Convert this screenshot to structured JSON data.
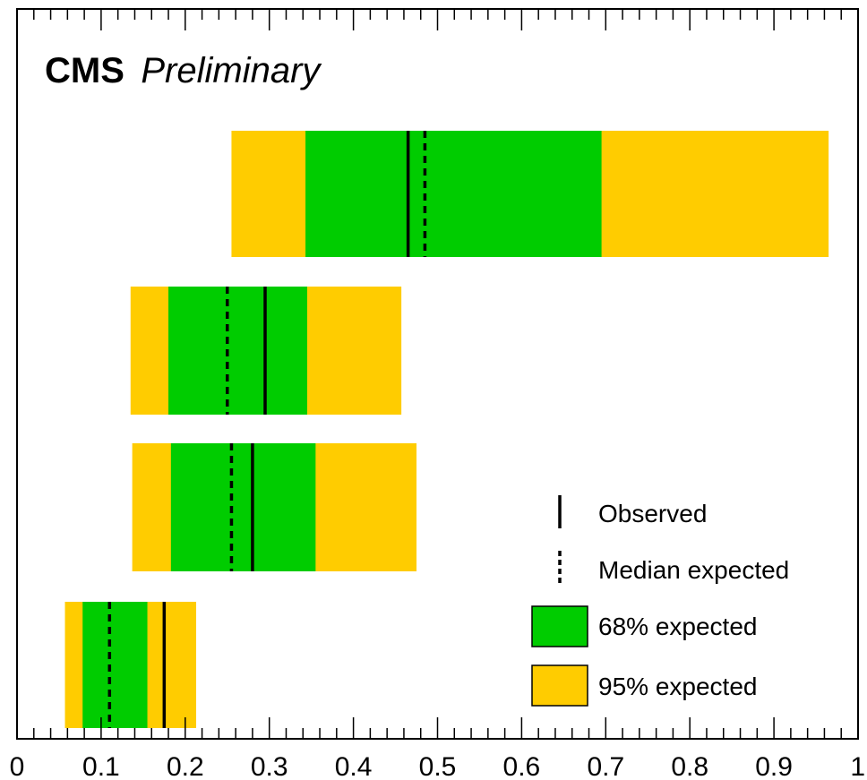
{
  "chart_data": {
    "type": "bar",
    "title": "CMS",
    "subtitle": "Preliminary",
    "xlabel": "",
    "ylabel": "",
    "xlim": [
      0,
      1
    ],
    "x_ticks": [
      "0",
      "0.1",
      "0.2",
      "0.3",
      "0.4",
      "0.5",
      "0.6",
      "0.7",
      "0.8",
      "0.9",
      "1"
    ],
    "grid": false,
    "legend_position": "bottom-right",
    "colors": {
      "band68": "#00cc00",
      "band95": "#ffcc00",
      "line": "#000000"
    },
    "legend": {
      "observed": "Observed",
      "median": "Median expected",
      "band68": "68% expected",
      "band95": "95% expected"
    },
    "rows": [
      {
        "observed": 0.465,
        "median": 0.485,
        "lo68": 0.343,
        "hi68": 0.695,
        "lo95": 0.255,
        "hi95": 0.965
      },
      {
        "observed": 0.295,
        "median": 0.25,
        "lo68": 0.18,
        "hi68": 0.345,
        "lo95": 0.135,
        "hi95": 0.457
      },
      {
        "observed": 0.28,
        "median": 0.255,
        "lo68": 0.183,
        "hi68": 0.355,
        "lo95": 0.137,
        "hi95": 0.475
      },
      {
        "observed": 0.175,
        "median": 0.11,
        "lo68": 0.078,
        "hi68": 0.155,
        "lo95": 0.057,
        "hi95": 0.213
      }
    ]
  }
}
